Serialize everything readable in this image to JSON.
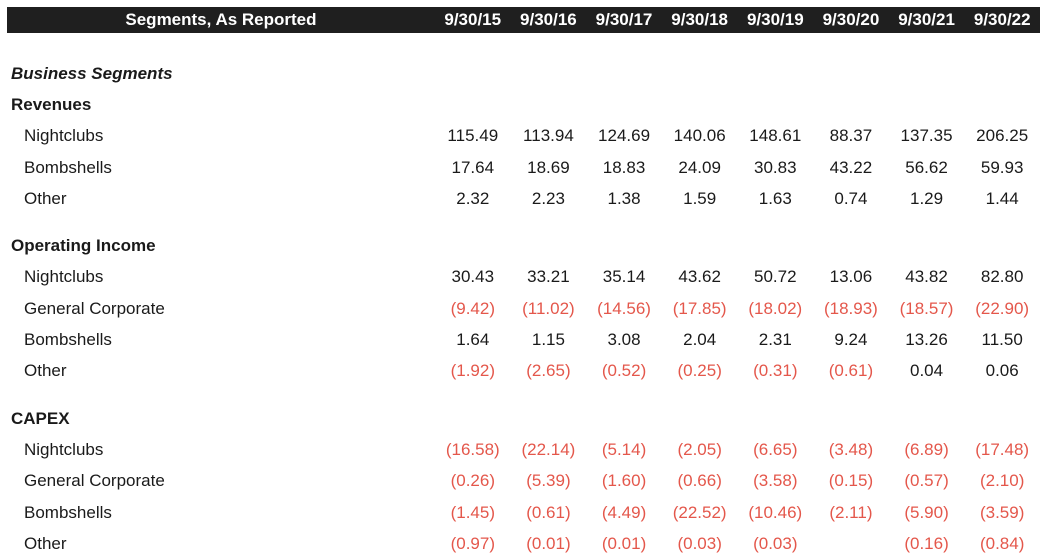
{
  "header": {
    "title": "Segments, As Reported",
    "periods": [
      "9/30/15",
      "9/30/16",
      "9/30/17",
      "9/30/18",
      "9/30/19",
      "9/30/20",
      "9/30/21",
      "9/30/22"
    ]
  },
  "sections": [
    {
      "type": "italic",
      "label": "Business Segments"
    },
    {
      "type": "section",
      "label": "Revenues"
    },
    {
      "type": "item",
      "label": "Nightclubs",
      "values": [
        "115.49",
        "113.94",
        "124.69",
        "140.06",
        "148.61",
        "88.37",
        "137.35",
        "206.25"
      ]
    },
    {
      "type": "item",
      "label": "Bombshells",
      "values": [
        "17.64",
        "18.69",
        "18.83",
        "24.09",
        "30.83",
        "43.22",
        "56.62",
        "59.93"
      ]
    },
    {
      "type": "item",
      "label": "Other",
      "values": [
        "2.32",
        "2.23",
        "1.38",
        "1.59",
        "1.63",
        "0.74",
        "1.29",
        "1.44"
      ]
    },
    {
      "type": "gap"
    },
    {
      "type": "section",
      "label": "Operating Income"
    },
    {
      "type": "item",
      "label": "Nightclubs",
      "values": [
        "30.43",
        "33.21",
        "35.14",
        "43.62",
        "50.72",
        "13.06",
        "43.82",
        "82.80"
      ]
    },
    {
      "type": "item",
      "label": "General Corporate",
      "values": [
        "(9.42)",
        "(11.02)",
        "(14.56)",
        "(17.85)",
        "(18.02)",
        "(18.93)",
        "(18.57)",
        "(22.90)"
      ]
    },
    {
      "type": "item",
      "label": "Bombshells",
      "values": [
        "1.64",
        "1.15",
        "3.08",
        "2.04",
        "2.31",
        "9.24",
        "13.26",
        "11.50"
      ]
    },
    {
      "type": "item",
      "label": "Other",
      "values": [
        "(1.92)",
        "(2.65)",
        "(0.52)",
        "(0.25)",
        "(0.31)",
        "(0.61)",
        "0.04",
        "0.06"
      ]
    },
    {
      "type": "gap"
    },
    {
      "type": "section",
      "label": "CAPEX"
    },
    {
      "type": "item",
      "label": "Nightclubs",
      "values": [
        "(16.58)",
        "(22.14)",
        "(5.14)",
        "(2.05)",
        "(6.65)",
        "(3.48)",
        "(6.89)",
        "(17.48)"
      ]
    },
    {
      "type": "item",
      "label": "General Corporate",
      "values": [
        "(0.26)",
        "(5.39)",
        "(1.60)",
        "(0.66)",
        "(3.58)",
        "(0.15)",
        "(0.57)",
        "(2.10)"
      ]
    },
    {
      "type": "item",
      "label": "Bombshells",
      "values": [
        "(1.45)",
        "(0.61)",
        "(4.49)",
        "(22.52)",
        "(10.46)",
        "(2.11)",
        "(5.90)",
        "(3.59)"
      ]
    },
    {
      "type": "item",
      "label": "Other",
      "values": [
        "(0.97)",
        "(0.01)",
        "(0.01)",
        "(0.03)",
        "(0.03)",
        "",
        "(0.16)",
        "(0.84)"
      ]
    }
  ],
  "colors": {
    "header_bg": "#1f1f1f",
    "negative": "#e4574b",
    "text": "#1a1a1a"
  }
}
